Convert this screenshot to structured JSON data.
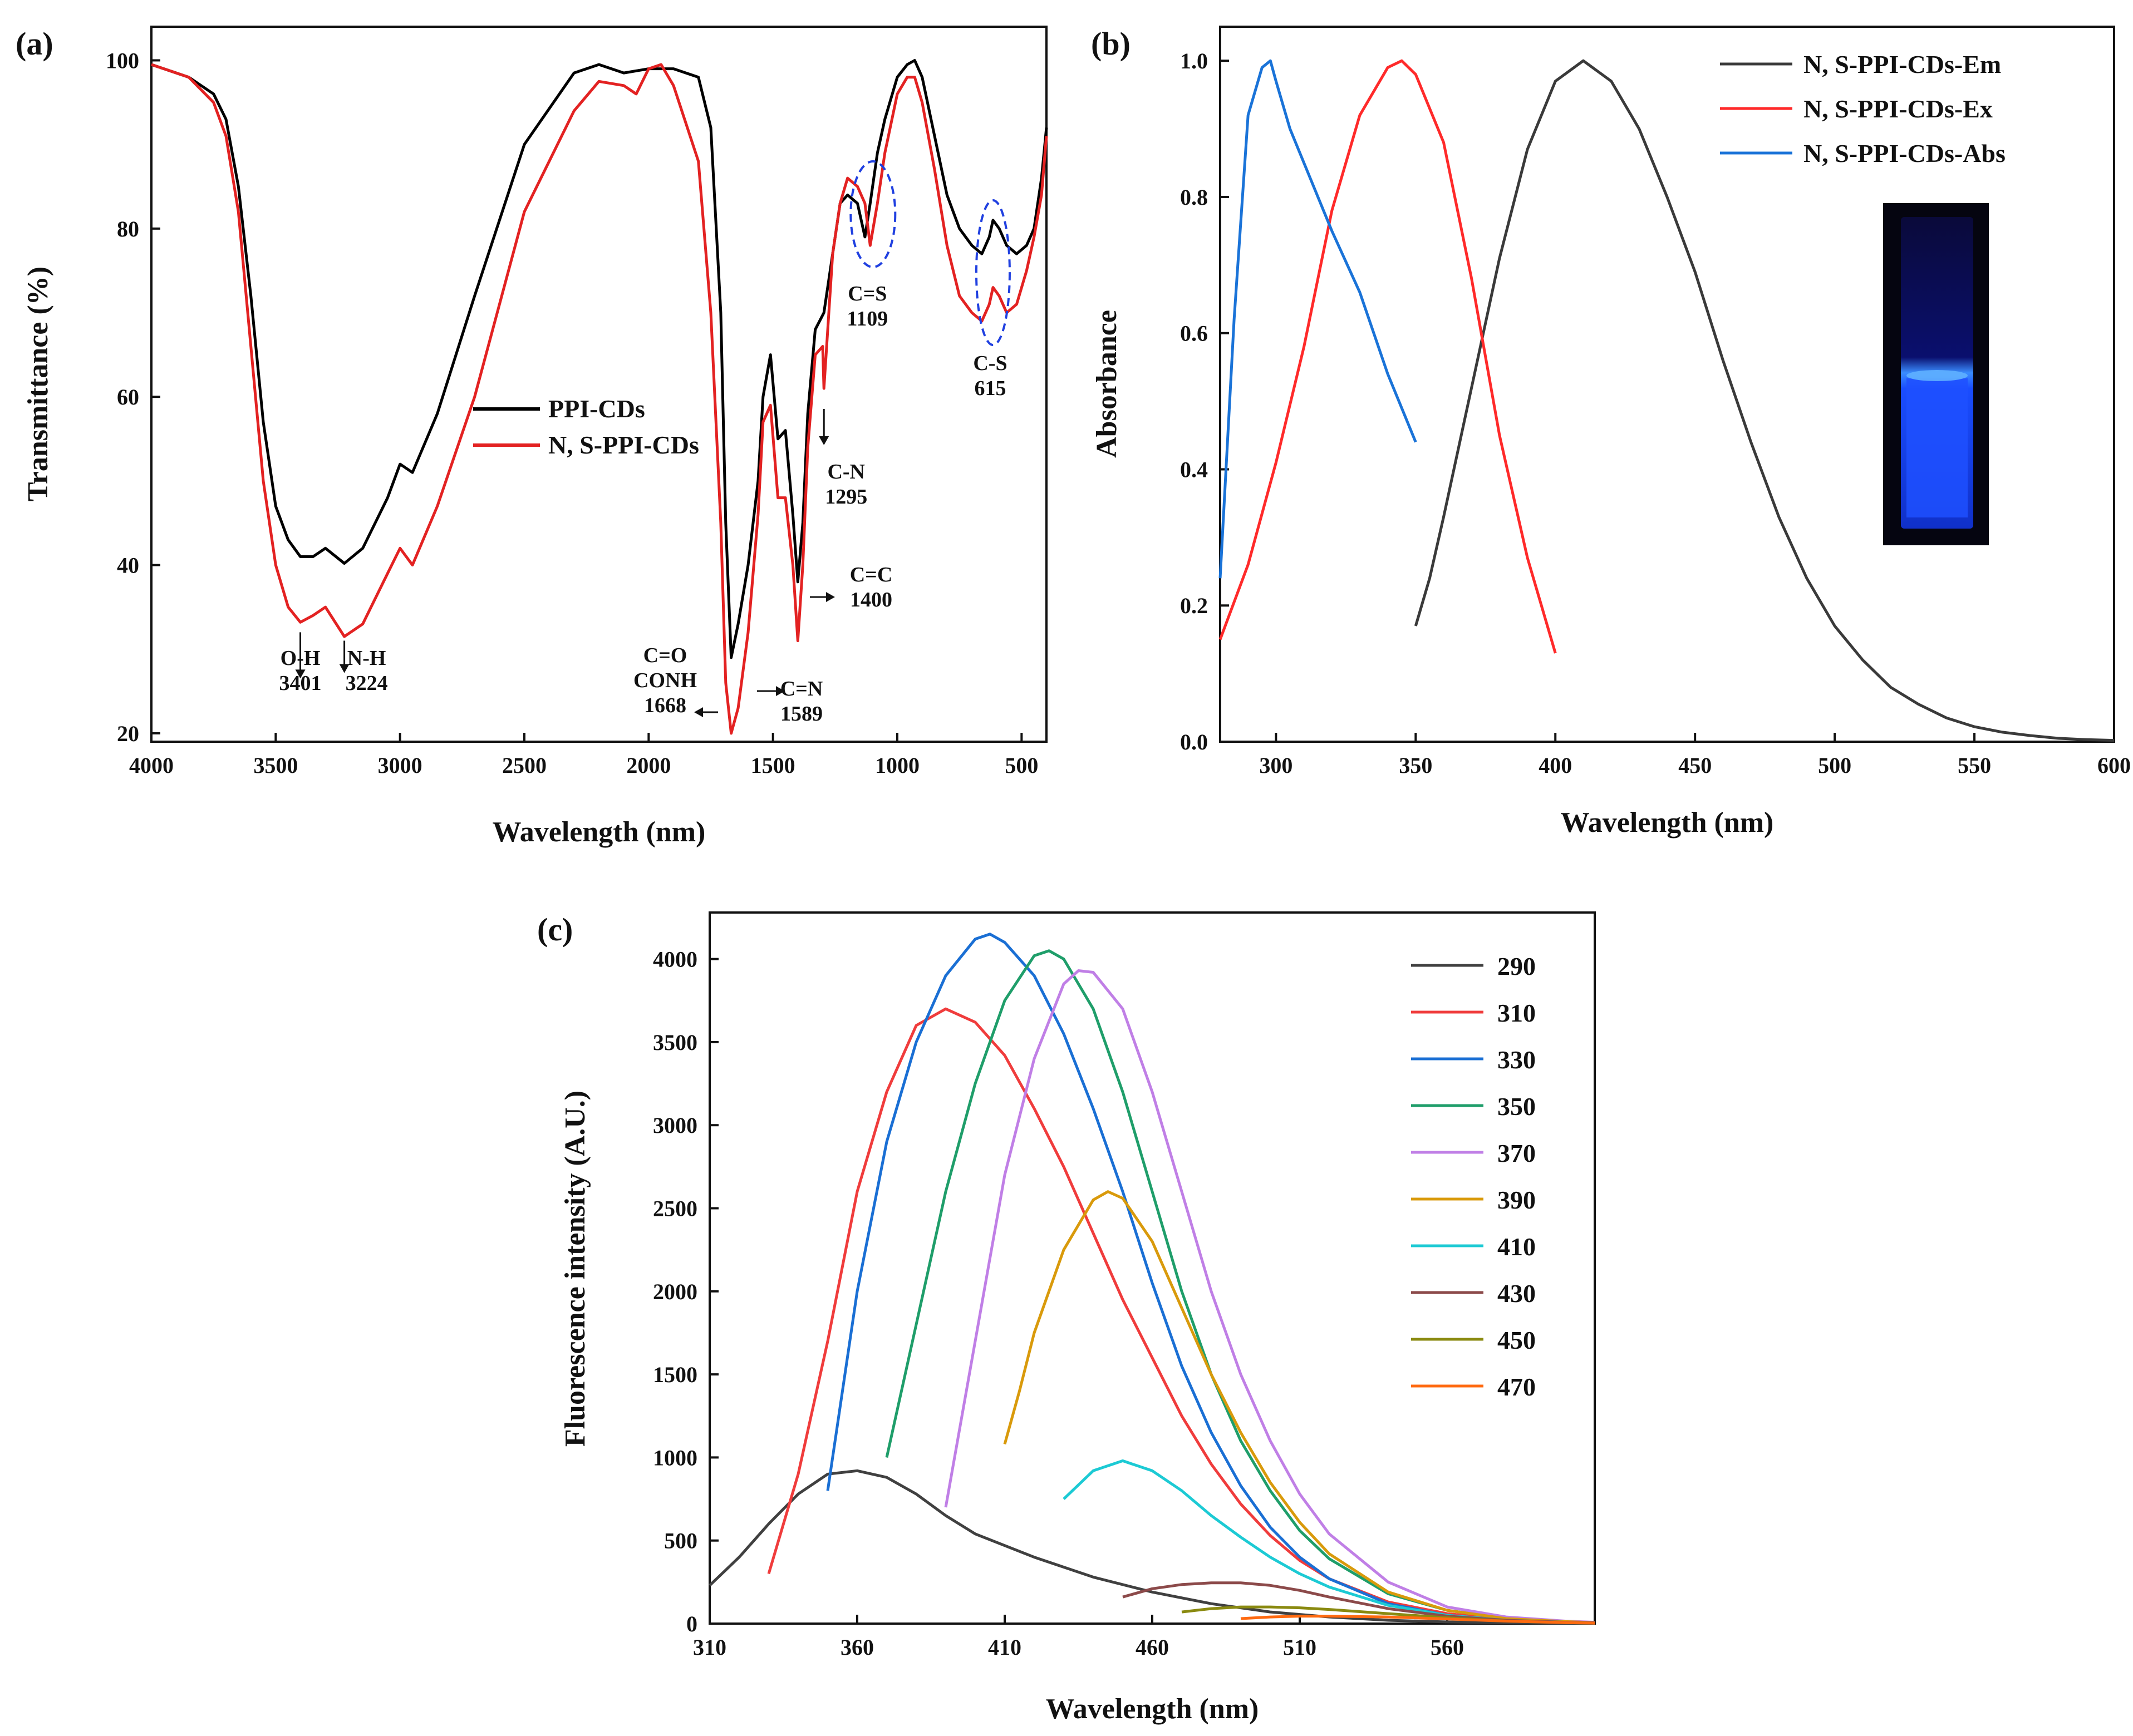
{
  "chart_data": [
    {
      "panel": "(a)",
      "type": "line",
      "xlabel": "Wavelength (nm)",
      "ylabel": "Transmittance (%)",
      "xlim": [
        4000,
        400
      ],
      "ylim": [
        19,
        104
      ],
      "xticks": [
        4000,
        3500,
        3000,
        2500,
        2000,
        1500,
        1000,
        500
      ],
      "yticks": [
        20,
        40,
        60,
        80,
        100
      ],
      "legend_position": "center",
      "series": [
        {
          "name": "PPI-CDs",
          "color": "#000000",
          "x": [
            4000,
            3850,
            3750,
            3700,
            3650,
            3600,
            3550,
            3500,
            3450,
            3401,
            3350,
            3300,
            3224,
            3150,
            3050,
            3000,
            2950,
            2850,
            2700,
            2500,
            2300,
            2200,
            2100,
            2000,
            1900,
            1800,
            1750,
            1710,
            1690,
            1668,
            1640,
            1600,
            1560,
            1540,
            1510,
            1480,
            1450,
            1420,
            1400,
            1380,
            1360,
            1330,
            1295,
            1260,
            1230,
            1200,
            1160,
            1130,
            1109,
            1080,
            1050,
            1000,
            960,
            930,
            900,
            850,
            800,
            750,
            700,
            660,
            630,
            615,
            590,
            560,
            520,
            480,
            450,
            420,
            400
          ],
          "y": [
            99.5,
            98,
            96,
            93,
            85,
            72,
            57,
            47,
            43,
            41,
            41,
            42,
            40.2,
            42,
            48,
            52,
            51,
            58,
            72,
            90,
            98.5,
            99.5,
            98.5,
            99,
            99,
            98,
            92,
            70,
            45,
            29,
            33,
            40,
            50,
            60,
            65,
            55,
            56,
            46,
            38,
            45,
            58,
            68,
            70,
            77,
            83,
            84,
            83,
            79,
            83,
            89,
            93,
            98,
            99.5,
            100,
            98,
            91,
            84,
            80,
            78,
            77,
            79,
            81,
            80,
            78,
            77,
            78,
            80,
            86,
            92
          ],
          "annotations": [
            {
              "lines": [
                "O-H",
                "3401"
              ],
              "x": 3401,
              "arrow_to_y": 33
            },
            {
              "lines": [
                "N-H",
                "3224"
              ],
              "x": 3224,
              "arrow_to_y": 32
            },
            {
              "lines": [
                "C=O",
                "CONH",
                "1668"
              ],
              "x": 1668
            },
            {
              "lines": [
                "C=N",
                "1589"
              ],
              "x": 1589
            },
            {
              "lines": [
                "C=C",
                "1400"
              ],
              "x": 1400
            },
            {
              "lines": [
                "C-N",
                "1295"
              ],
              "x": 1295
            },
            {
              "lines": [
                "C=S",
                "1109"
              ],
              "x": 1109
            },
            {
              "lines": [
                "C-S",
                "615"
              ],
              "x": 615
            }
          ]
        },
        {
          "name": "N, S-PPI-CDs",
          "color": "#e32222",
          "x": [
            4000,
            3850,
            3750,
            3700,
            3650,
            3600,
            3550,
            3500,
            3450,
            3401,
            3350,
            3300,
            3224,
            3150,
            3050,
            3000,
            2950,
            2850,
            2700,
            2500,
            2300,
            2200,
            2100,
            2050,
            2000,
            1950,
            1900,
            1800,
            1750,
            1710,
            1690,
            1668,
            1640,
            1600,
            1560,
            1540,
            1510,
            1480,
            1450,
            1420,
            1400,
            1380,
            1360,
            1330,
            1300,
            1295,
            1260,
            1230,
            1200,
            1160,
            1130,
            1109,
            1080,
            1050,
            1000,
            960,
            930,
            900,
            850,
            800,
            750,
            700,
            660,
            630,
            615,
            590,
            560,
            520,
            480,
            450,
            420,
            400
          ],
          "y": [
            99.5,
            98,
            95,
            91,
            82,
            66,
            50,
            40,
            35,
            33.2,
            34,
            35,
            31.5,
            33,
            39,
            42,
            40,
            47,
            60,
            82,
            94,
            97.5,
            97,
            96,
            99,
            99.5,
            97,
            88,
            70,
            45,
            26,
            20,
            23,
            32,
            46,
            57,
            59,
            48,
            48,
            40,
            31,
            40,
            54,
            65,
            66,
            61,
            77,
            83,
            86,
            85,
            83,
            78,
            83,
            89,
            96,
            98,
            98,
            95,
            87,
            78,
            72,
            70,
            69,
            71,
            73,
            72,
            70,
            71,
            75,
            79,
            84,
            91
          ]
        }
      ]
    },
    {
      "panel": "(b)",
      "type": "line",
      "xlabel": "Wavelength (nm)",
      "ylabel": "Absorbance",
      "xlim": [
        280,
        600
      ],
      "ylim": [
        0,
        1.05
      ],
      "xticks": [
        300,
        350,
        400,
        450,
        500,
        550,
        600
      ],
      "yticks": [
        0.0,
        0.2,
        0.4,
        0.6,
        0.8,
        1.0
      ],
      "legend_position": "top-right",
      "inset": "photo of glowing blue cuvette under UV light",
      "series": [
        {
          "name": "N, S-PPI-CDs-Em",
          "color": "#3a3a3a",
          "x": [
            350,
            355,
            360,
            370,
            380,
            390,
            400,
            410,
            420,
            430,
            440,
            450,
            460,
            470,
            480,
            490,
            500,
            510,
            520,
            530,
            540,
            550,
            560,
            570,
            580,
            590,
            600
          ],
          "y": [
            0.17,
            0.24,
            0.33,
            0.52,
            0.71,
            0.87,
            0.97,
            1.0,
            0.97,
            0.9,
            0.8,
            0.69,
            0.56,
            0.44,
            0.33,
            0.24,
            0.17,
            0.12,
            0.08,
            0.055,
            0.035,
            0.022,
            0.014,
            0.009,
            0.005,
            0.003,
            0.002
          ]
        },
        {
          "name": "N, S-PPI-CDs-Ex",
          "color": "#ff2a2a",
          "x": [
            280,
            290,
            300,
            310,
            320,
            330,
            340,
            345,
            350,
            360,
            370,
            380,
            390,
            400
          ],
          "y": [
            0.15,
            0.26,
            0.41,
            0.58,
            0.78,
            0.92,
            0.99,
            1.0,
            0.98,
            0.88,
            0.68,
            0.45,
            0.27,
            0.13
          ]
        },
        {
          "name": "N, S-PPI-CDs-Abs",
          "color": "#1a73d8",
          "x": [
            280,
            285,
            290,
            295,
            298,
            300,
            305,
            310,
            320,
            330,
            340,
            350
          ],
          "y": [
            0.24,
            0.62,
            0.92,
            0.99,
            1.0,
            0.97,
            0.9,
            0.85,
            0.75,
            0.66,
            0.54,
            0.44
          ]
        }
      ]
    },
    {
      "panel": "(c)",
      "type": "line",
      "xlabel": "Wavelength (nm)",
      "ylabel": "Fluorescence intensity (A.U.)",
      "xlim": [
        310,
        610
      ],
      "ylim": [
        0,
        4280
      ],
      "xticks": [
        310,
        360,
        410,
        460,
        510,
        560
      ],
      "yticks": [
        0,
        500,
        1000,
        1500,
        2000,
        2500,
        3000,
        3500,
        4000
      ],
      "legend_position": "top-right",
      "series": [
        {
          "name": "290",
          "color": "#404040",
          "x": [
            310,
            320,
            330,
            340,
            350,
            360,
            370,
            380,
            390,
            400,
            420,
            440,
            460,
            480,
            500,
            520,
            540,
            560,
            580,
            600,
            610
          ],
          "y": [
            230,
            400,
            600,
            780,
            900,
            920,
            880,
            780,
            650,
            540,
            400,
            280,
            190,
            120,
            70,
            40,
            20,
            10,
            5,
            2,
            2
          ]
        },
        {
          "name": "310",
          "color": "#f03c3c",
          "x": [
            330,
            340,
            350,
            360,
            370,
            380,
            390,
            400,
            410,
            420,
            430,
            440,
            450,
            460,
            470,
            480,
            490,
            500,
            510,
            520,
            540,
            560,
            580,
            600,
            610
          ],
          "y": [
            300,
            900,
            1700,
            2600,
            3200,
            3600,
            3700,
            3620,
            3420,
            3100,
            2750,
            2350,
            1950,
            1600,
            1250,
            960,
            720,
            530,
            380,
            270,
            130,
            60,
            25,
            10,
            5
          ]
        },
        {
          "name": "330",
          "color": "#1a6fd4",
          "x": [
            350,
            355,
            360,
            370,
            380,
            390,
            400,
            405,
            410,
            420,
            430,
            440,
            450,
            460,
            470,
            480,
            490,
            500,
            510,
            520,
            540,
            560,
            580,
            600,
            610
          ],
          "y": [
            800,
            1400,
            2000,
            2900,
            3500,
            3900,
            4120,
            4150,
            4100,
            3900,
            3550,
            3100,
            2600,
            2050,
            1550,
            1150,
            830,
            580,
            400,
            270,
            120,
            50,
            20,
            8,
            5
          ]
        },
        {
          "name": "350",
          "color": "#1f9e6a",
          "x": [
            370,
            380,
            390,
            400,
            410,
            420,
            425,
            430,
            440,
            450,
            460,
            470,
            480,
            490,
            500,
            510,
            520,
            540,
            560,
            580,
            600,
            610
          ],
          "y": [
            1000,
            1800,
            2600,
            3250,
            3750,
            4020,
            4050,
            4000,
            3700,
            3200,
            2600,
            2000,
            1500,
            1100,
            800,
            560,
            390,
            180,
            80,
            30,
            10,
            5
          ]
        },
        {
          "name": "370",
          "color": "#c07fe6",
          "x": [
            390,
            400,
            410,
            420,
            430,
            435,
            440,
            450,
            460,
            470,
            480,
            490,
            500,
            510,
            520,
            540,
            560,
            580,
            600,
            610
          ],
          "y": [
            700,
            1700,
            2700,
            3400,
            3850,
            3930,
            3920,
            3700,
            3200,
            2600,
            2000,
            1500,
            1100,
            780,
            540,
            250,
            100,
            40,
            15,
            8
          ]
        },
        {
          "name": "390",
          "color": "#d99a0b",
          "x": [
            410,
            415,
            420,
            430,
            440,
            445,
            450,
            460,
            470,
            480,
            490,
            500,
            510,
            520,
            540,
            560,
            580,
            600,
            610
          ],
          "y": [
            1080,
            1400,
            1750,
            2250,
            2550,
            2600,
            2560,
            2300,
            1900,
            1500,
            1150,
            850,
            610,
            420,
            190,
            80,
            30,
            12,
            6
          ]
        },
        {
          "name": "410",
          "color": "#1ccad4",
          "x": [
            430,
            440,
            450,
            460,
            470,
            480,
            490,
            500,
            510,
            520,
            540,
            560,
            580,
            600,
            610
          ],
          "y": [
            750,
            920,
            980,
            920,
            800,
            650,
            520,
            400,
            300,
            220,
            110,
            50,
            20,
            8,
            5
          ]
        },
        {
          "name": "430",
          "color": "#8c4a4a",
          "x": [
            450,
            460,
            470,
            480,
            490,
            500,
            510,
            520,
            540,
            560,
            580,
            600,
            610
          ],
          "y": [
            160,
            210,
            235,
            245,
            245,
            230,
            200,
            160,
            90,
            45,
            20,
            8,
            5
          ]
        },
        {
          "name": "450",
          "color": "#8a8a10",
          "x": [
            470,
            480,
            490,
            500,
            510,
            520,
            540,
            560,
            580,
            600,
            610
          ],
          "y": [
            70,
            90,
            100,
            100,
            95,
            85,
            60,
            35,
            15,
            6,
            3
          ]
        },
        {
          "name": "470",
          "color": "#ff6a10",
          "x": [
            490,
            500,
            510,
            520,
            540,
            560,
            580,
            600,
            610
          ],
          "y": [
            30,
            40,
            45,
            45,
            40,
            28,
            15,
            6,
            3
          ]
        }
      ]
    }
  ]
}
